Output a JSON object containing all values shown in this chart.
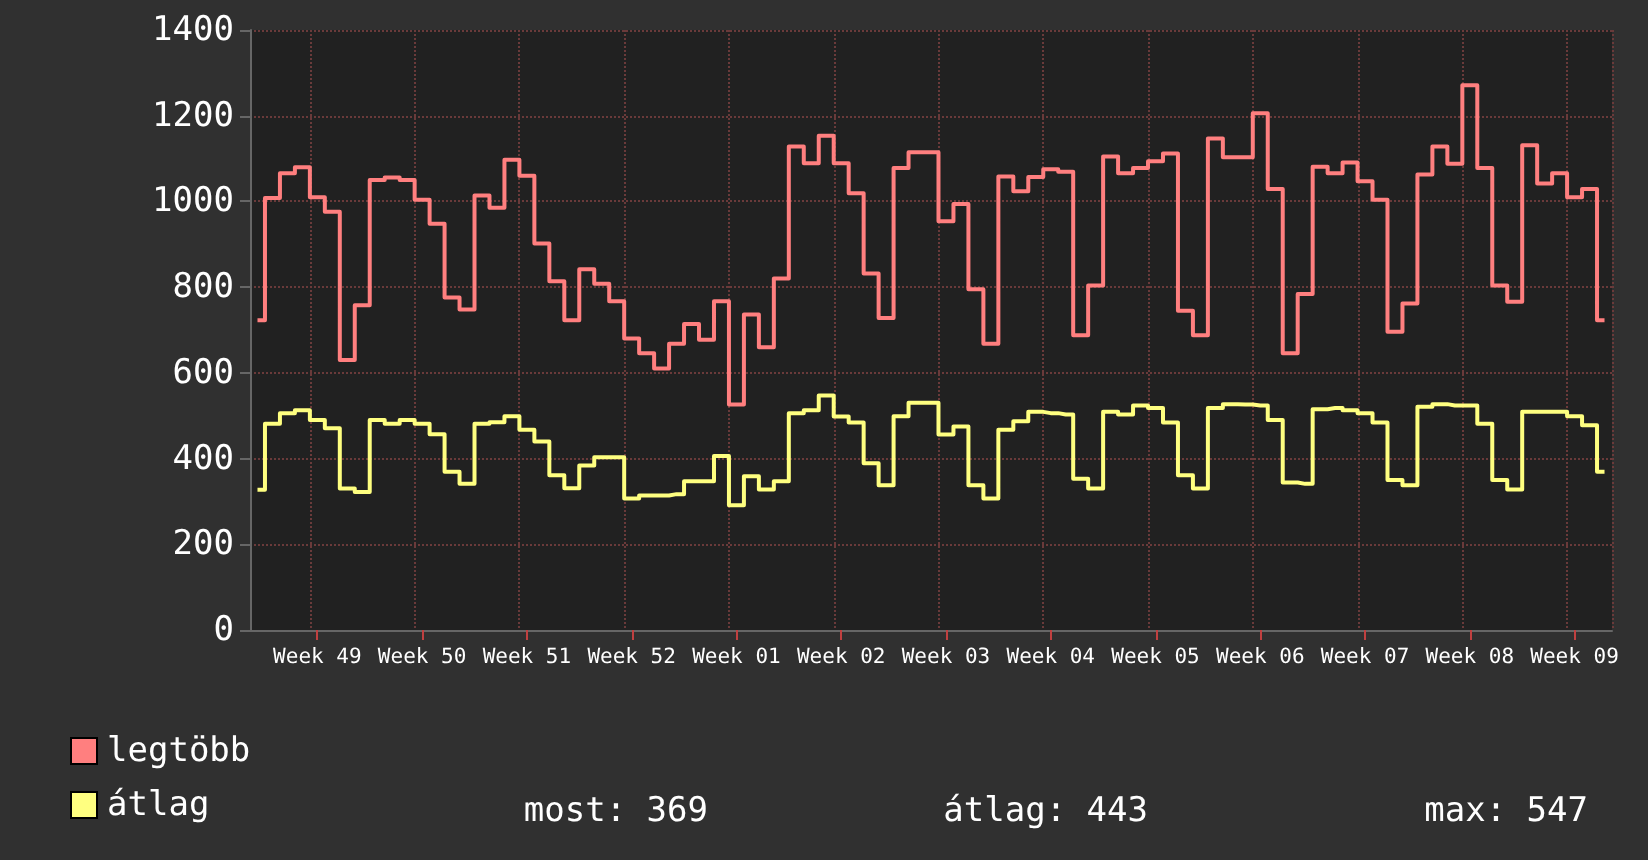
{
  "chart_data": {
    "type": "step",
    "categories": [
      null,
      null,
      null,
      null,
      "Week 49",
      null,
      null,
      null,
      null,
      null,
      null,
      "Week 50",
      null,
      null,
      null,
      null,
      null,
      null,
      "Week 51",
      null,
      null,
      null,
      null,
      null,
      null,
      "Week 52",
      null,
      null,
      null,
      null,
      null,
      null,
      "Week 01",
      null,
      null,
      null,
      null,
      null,
      null,
      "Week 02",
      null,
      null,
      null,
      null,
      null,
      null,
      "Week 03",
      null,
      null,
      null,
      null,
      null,
      null,
      "Week 04",
      null,
      null,
      null,
      null,
      null,
      null,
      "Week 05",
      null,
      null,
      null,
      null,
      null,
      null,
      "Week 06",
      null,
      null,
      null,
      null,
      null,
      null,
      "Week 07",
      null,
      null,
      null,
      null,
      null,
      null,
      "Week 08",
      null,
      null,
      null,
      null,
      null,
      null,
      "Week 09",
      null,
      null
    ],
    "series": [
      {
        "name": "legtöbb",
        "color": "#ff7f7f",
        "values": [
          723,
          1008,
          1066,
          1080,
          1010,
          976,
          630,
          758,
          1050,
          1056,
          1050,
          1004,
          948,
          776,
          748,
          1014,
          985,
          1097,
          1060,
          902,
          814,
          723,
          842,
          808,
          767,
          680,
          646,
          610,
          668,
          714,
          677,
          767,
          526,
          736,
          660,
          820,
          1128,
          1089,
          1153,
          1089,
          1019,
          832,
          728,
          1078,
          1115,
          1115,
          954,
          994,
          795,
          668,
          1058,
          1024,
          1057,
          1075,
          1069,
          688,
          804,
          1105,
          1066,
          1078,
          1094,
          1112,
          745,
          688,
          1147,
          1103,
          1103,
          1206,
          1029,
          646,
          784,
          1081,
          1066,
          1091,
          1047,
          1004,
          696,
          762,
          1063,
          1128,
          1088,
          1271,
          1078,
          804,
          766,
          1131,
          1042,
          1066,
          1010,
          1029,
          723
        ]
      },
      {
        "name": "átlag",
        "color": "#ffff80",
        "values": [
          327,
          481,
          506,
          513,
          490,
          471,
          330,
          322,
          490,
          481,
          490,
          481,
          457,
          369,
          341,
          481,
          485,
          499,
          467,
          440,
          361,
          331,
          384,
          403,
          403,
          307,
          314,
          314,
          317,
          347,
          347,
          406,
          291,
          359,
          328,
          347,
          506,
          513,
          547,
          498,
          484,
          389,
          338,
          499,
          530,
          530,
          456,
          475,
          338,
          307,
          467,
          487,
          509,
          506,
          503,
          353,
          330,
          509,
          503,
          524,
          518,
          484,
          361,
          330,
          518,
          527,
          526,
          524,
          490,
          344,
          341,
          515,
          518,
          513,
          506,
          484,
          350,
          338,
          521,
          527,
          524,
          524,
          481,
          350,
          328,
          509,
          509,
          509,
          499,
          478,
          369
        ]
      }
    ],
    "ylim": [
      0,
      1400
    ],
    "yticks": [
      0,
      200,
      400,
      600,
      800,
      1000,
      1200,
      1400
    ],
    "grid": true,
    "legend": "bottom left",
    "marker": "none",
    "line_style": "solid",
    "annotations": [
      "most: 369",
      "átlag: 443",
      "max: 547"
    ]
  }
}
